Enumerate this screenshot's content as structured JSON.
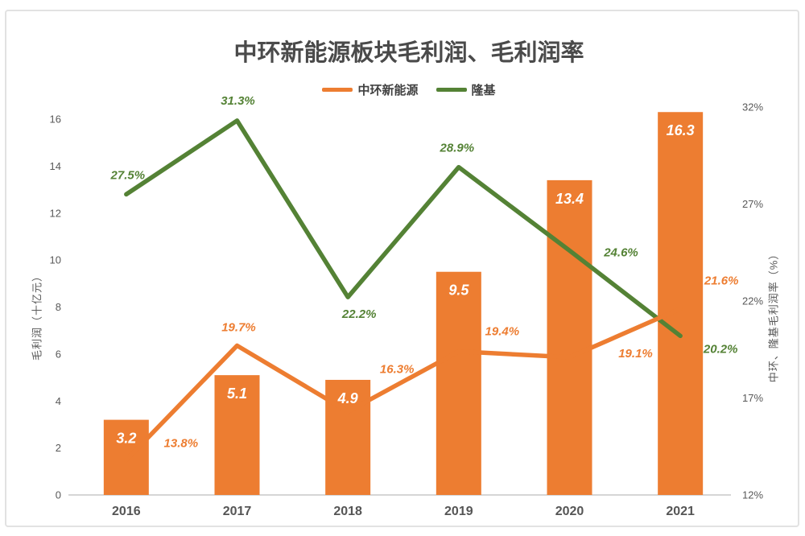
{
  "title": "中环新能源板块毛利润、毛利润率",
  "legend": [
    {
      "label": "中环新能源",
      "color": "#ED7D31"
    },
    {
      "label": "隆基",
      "color": "#548235"
    }
  ],
  "chart_data": {
    "type": "combo-bar-line",
    "categories": [
      "2016",
      "2017",
      "2018",
      "2019",
      "2020",
      "2021"
    ],
    "left_axis": {
      "title": "毛利润（十亿元）",
      "min": 0,
      "max": 16,
      "tick_values": [
        0,
        2,
        4,
        6,
        8,
        10,
        12,
        14,
        16
      ],
      "tick_labels": [
        "0",
        "2",
        "4",
        "6",
        "8",
        "10",
        "12",
        "14",
        "16"
      ]
    },
    "right_axis": {
      "title": "中环、隆基毛利润率（%）",
      "min": 12,
      "max": 32,
      "tick_values": [
        12,
        17,
        22,
        27,
        32
      ],
      "tick_labels": [
        "12%",
        "17%",
        "22%",
        "27%",
        "32%"
      ]
    },
    "bar_series": {
      "name": "中环新能源",
      "axis": "left",
      "color": "#ED7D31",
      "label_color": "#FFFFFF",
      "values": [
        3.2,
        5.1,
        4.9,
        9.5,
        13.4,
        16.3
      ],
      "data_labels": [
        "3.2",
        "5.1",
        "4.9",
        "9.5",
        "13.4",
        "16.3"
      ]
    },
    "line_series": [
      {
        "name": "中环新能源",
        "axis": "right",
        "color": "#ED7D31",
        "values": [
          13.8,
          19.7,
          16.3,
          19.4,
          19.1,
          21.6
        ],
        "data_labels": [
          "13.8%",
          "19.7%",
          "16.3%",
          "19.4%",
          "19.1%",
          "21.6%"
        ]
      },
      {
        "name": "隆基",
        "axis": "right",
        "color": "#548235",
        "values": [
          27.5,
          31.3,
          22.2,
          28.9,
          24.6,
          20.2
        ],
        "data_labels": [
          "27.5%",
          "31.3%",
          "22.2%",
          "28.9%",
          "24.6%",
          "20.2%"
        ]
      }
    ],
    "grid": false,
    "legend_position": "top"
  }
}
